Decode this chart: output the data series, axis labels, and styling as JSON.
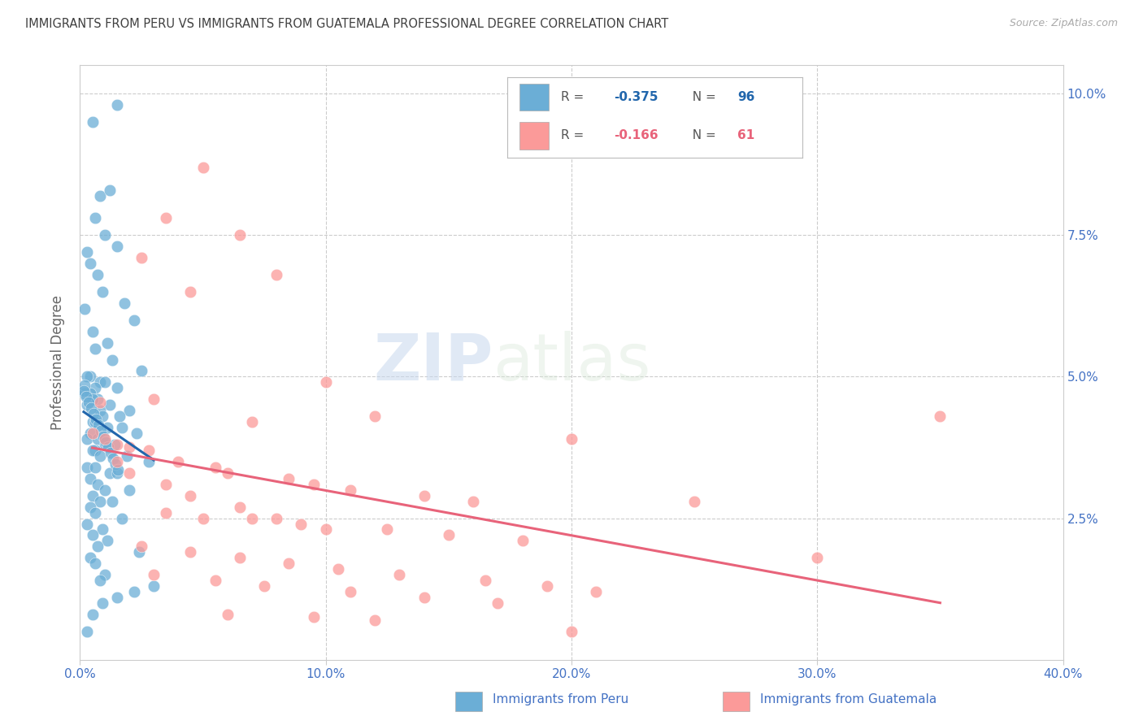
{
  "title": "IMMIGRANTS FROM PERU VS IMMIGRANTS FROM GUATEMALA PROFESSIONAL DEGREE CORRELATION CHART",
  "source": "Source: ZipAtlas.com",
  "ylabel": "Professional Degree",
  "xlim": [
    0.0,
    40.0
  ],
  "ylim": [
    0.0,
    10.5
  ],
  "peru_R": "-0.375",
  "peru_N": "96",
  "guatemala_R": "-0.166",
  "guatemala_N": "61",
  "peru_color": "#6baed6",
  "guatemala_color": "#fb9a99",
  "peru_line_color": "#2166ac",
  "guatemala_line_color": "#e8637a",
  "legend_peru_label": "Immigrants from Peru",
  "legend_guatemala_label": "Immigrants from Guatemala",
  "watermark_zip": "ZIP",
  "watermark_atlas": "atlas",
  "background_color": "#ffffff",
  "grid_color": "#cccccc",
  "axis_label_color": "#4472c4",
  "title_color": "#404040",
  "peru_scatter": [
    [
      0.5,
      9.5
    ],
    [
      1.5,
      9.8
    ],
    [
      0.8,
      8.2
    ],
    [
      1.2,
      8.3
    ],
    [
      0.6,
      7.8
    ],
    [
      1.0,
      7.5
    ],
    [
      1.5,
      7.3
    ],
    [
      0.3,
      7.2
    ],
    [
      0.4,
      7.0
    ],
    [
      0.7,
      6.8
    ],
    [
      0.9,
      6.5
    ],
    [
      1.8,
      6.3
    ],
    [
      0.2,
      6.2
    ],
    [
      2.2,
      6.0
    ],
    [
      0.5,
      5.8
    ],
    [
      1.1,
      5.6
    ],
    [
      0.6,
      5.5
    ],
    [
      1.3,
      5.3
    ],
    [
      2.5,
      5.1
    ],
    [
      0.4,
      5.0
    ],
    [
      0.3,
      5.0
    ],
    [
      0.8,
      4.9
    ],
    [
      1.0,
      4.9
    ],
    [
      0.6,
      4.8
    ],
    [
      1.5,
      4.8
    ],
    [
      0.2,
      4.7
    ],
    [
      0.4,
      4.7
    ],
    [
      0.7,
      4.6
    ],
    [
      0.5,
      4.6
    ],
    [
      1.2,
      4.5
    ],
    [
      0.3,
      4.5
    ],
    [
      0.8,
      4.4
    ],
    [
      2.0,
      4.4
    ],
    [
      1.6,
      4.3
    ],
    [
      0.9,
      4.3
    ],
    [
      0.5,
      4.2
    ],
    [
      0.6,
      4.2
    ],
    [
      1.1,
      4.1
    ],
    [
      1.7,
      4.1
    ],
    [
      2.3,
      4.0
    ],
    [
      0.4,
      4.0
    ],
    [
      0.3,
      3.9
    ],
    [
      0.7,
      3.9
    ],
    [
      1.0,
      3.8
    ],
    [
      1.4,
      3.8
    ],
    [
      0.6,
      3.7
    ],
    [
      0.5,
      3.7
    ],
    [
      1.9,
      3.6
    ],
    [
      0.8,
      3.6
    ],
    [
      2.8,
      3.5
    ],
    [
      0.3,
      3.4
    ],
    [
      0.6,
      3.4
    ],
    [
      1.2,
      3.3
    ],
    [
      1.5,
      3.3
    ],
    [
      0.4,
      3.2
    ],
    [
      0.7,
      3.1
    ],
    [
      1.0,
      3.0
    ],
    [
      2.0,
      3.0
    ],
    [
      0.5,
      2.9
    ],
    [
      0.8,
      2.8
    ],
    [
      1.3,
      2.8
    ],
    [
      0.4,
      2.7
    ],
    [
      0.6,
      2.6
    ],
    [
      1.7,
      2.5
    ],
    [
      0.3,
      2.4
    ],
    [
      0.9,
      2.3
    ],
    [
      0.5,
      2.2
    ],
    [
      1.1,
      2.1
    ],
    [
      0.7,
      2.0
    ],
    [
      2.4,
      1.9
    ],
    [
      0.4,
      1.8
    ],
    [
      0.6,
      1.7
    ],
    [
      1.0,
      1.5
    ],
    [
      0.8,
      1.4
    ],
    [
      3.0,
      1.3
    ],
    [
      2.2,
      1.2
    ],
    [
      1.5,
      1.1
    ],
    [
      0.9,
      1.0
    ],
    [
      0.5,
      0.8
    ],
    [
      0.3,
      0.5
    ],
    [
      0.2,
      4.85
    ],
    [
      0.15,
      4.75
    ],
    [
      0.25,
      4.65
    ],
    [
      0.35,
      4.55
    ],
    [
      0.45,
      4.45
    ],
    [
      0.55,
      4.35
    ],
    [
      0.65,
      4.25
    ],
    [
      0.75,
      4.15
    ],
    [
      0.85,
      4.05
    ],
    [
      0.95,
      3.95
    ],
    [
      1.05,
      3.85
    ],
    [
      1.15,
      3.75
    ],
    [
      1.25,
      3.65
    ],
    [
      1.35,
      3.55
    ],
    [
      1.45,
      3.45
    ],
    [
      1.55,
      3.35
    ]
  ],
  "guatemala_scatter": [
    [
      5.0,
      8.7
    ],
    [
      3.5,
      7.8
    ],
    [
      6.5,
      7.5
    ],
    [
      2.5,
      7.1
    ],
    [
      8.0,
      6.8
    ],
    [
      4.5,
      6.5
    ],
    [
      10.0,
      4.9
    ],
    [
      3.0,
      4.6
    ],
    [
      12.0,
      4.3
    ],
    [
      7.0,
      4.2
    ],
    [
      0.5,
      4.0
    ],
    [
      1.0,
      3.9
    ],
    [
      1.5,
      3.8
    ],
    [
      2.0,
      3.75
    ],
    [
      2.8,
      3.7
    ],
    [
      4.0,
      3.5
    ],
    [
      5.5,
      3.4
    ],
    [
      6.0,
      3.3
    ],
    [
      8.5,
      3.2
    ],
    [
      9.5,
      3.1
    ],
    [
      11.0,
      3.0
    ],
    [
      14.0,
      2.9
    ],
    [
      16.0,
      2.8
    ],
    [
      3.5,
      2.6
    ],
    [
      5.0,
      2.5
    ],
    [
      7.0,
      2.5
    ],
    [
      9.0,
      2.4
    ],
    [
      12.5,
      2.3
    ],
    [
      15.0,
      2.2
    ],
    [
      18.0,
      2.1
    ],
    [
      2.5,
      2.0
    ],
    [
      4.5,
      1.9
    ],
    [
      6.5,
      1.8
    ],
    [
      8.5,
      1.7
    ],
    [
      10.5,
      1.6
    ],
    [
      13.0,
      1.5
    ],
    [
      16.5,
      1.4
    ],
    [
      19.0,
      1.3
    ],
    [
      21.0,
      1.2
    ],
    [
      3.0,
      1.5
    ],
    [
      5.5,
      1.4
    ],
    [
      7.5,
      1.3
    ],
    [
      11.0,
      1.2
    ],
    [
      14.0,
      1.1
    ],
    [
      17.0,
      1.0
    ],
    [
      6.0,
      0.8
    ],
    [
      9.5,
      0.75
    ],
    [
      12.0,
      0.7
    ],
    [
      1.5,
      3.5
    ],
    [
      2.0,
      3.3
    ],
    [
      3.5,
      3.1
    ],
    [
      4.5,
      2.9
    ],
    [
      6.5,
      2.7
    ],
    [
      8.0,
      2.5
    ],
    [
      10.0,
      2.3
    ],
    [
      35.0,
      4.3
    ],
    [
      20.0,
      3.9
    ],
    [
      25.0,
      2.8
    ],
    [
      30.0,
      1.8
    ],
    [
      20.0,
      0.5
    ],
    [
      0.8,
      4.55
    ]
  ]
}
